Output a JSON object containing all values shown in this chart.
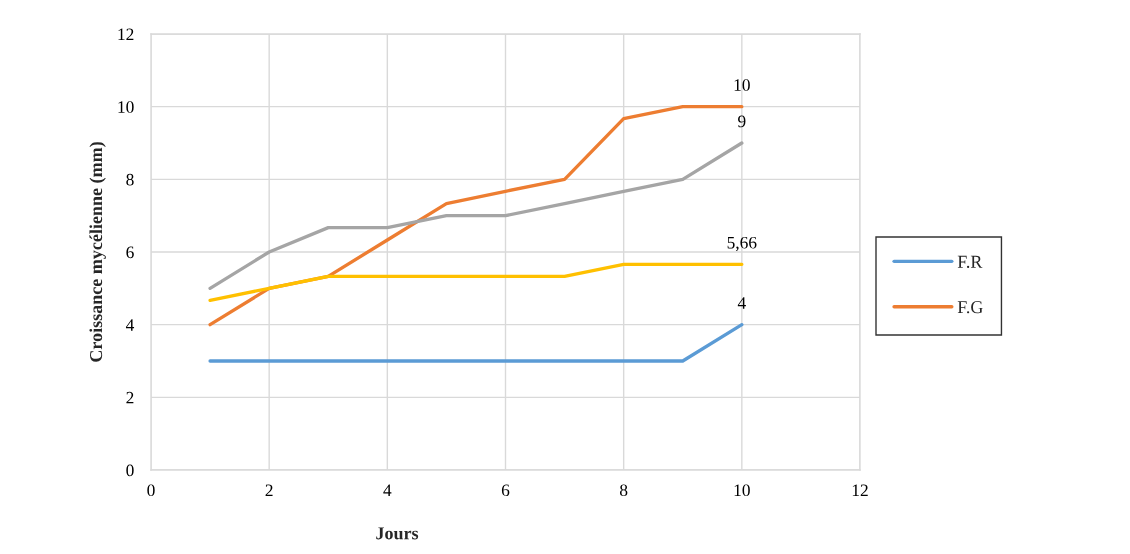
{
  "chart_data": {
    "type": "line",
    "xlabel": "Jours",
    "ylabel": "Croissance mycélienne (mm)",
    "x": [
      1,
      2,
      3,
      4,
      5,
      6,
      7,
      8,
      9,
      10
    ],
    "xlim": [
      0,
      12
    ],
    "xticks": [
      0,
      2,
      4,
      6,
      8,
      10,
      12
    ],
    "ylim": [
      0,
      12
    ],
    "yticks": [
      0,
      2,
      4,
      6,
      8,
      10,
      12
    ],
    "grid": true,
    "legend": "right",
    "line_style": "solid",
    "series": [
      {
        "name": "F.R",
        "color": "#5b9bd5",
        "values": [
          3,
          3,
          3,
          3,
          3,
          3,
          3,
          3,
          3,
          4
        ],
        "value_labels": [
          null,
          null,
          null,
          null,
          null,
          null,
          null,
          null,
          null,
          "4"
        ]
      },
      {
        "name": "F.G",
        "color": "#ed7d31",
        "values": [
          4,
          5,
          5.33,
          6.33,
          7.33,
          7.67,
          8,
          9.67,
          10,
          10
        ],
        "value_labels": [
          null,
          null,
          null,
          null,
          null,
          null,
          null,
          null,
          null,
          "10"
        ]
      },
      {
        "color": "#a5a5a5",
        "values": [
          5,
          6,
          6.67,
          6.67,
          7,
          7,
          7.33,
          7.67,
          8,
          9
        ],
        "value_labels": [
          null,
          null,
          null,
          null,
          null,
          null,
          null,
          null,
          null,
          "9"
        ]
      },
      {
        "color": "#ffc000",
        "values": [
          4.67,
          5,
          5.33,
          5.33,
          5.33,
          5.33,
          5.33,
          5.66,
          5.66,
          5.66
        ],
        "value_labels": [
          null,
          null,
          null,
          null,
          null,
          null,
          null,
          null,
          null,
          "5,66"
        ]
      }
    ]
  }
}
